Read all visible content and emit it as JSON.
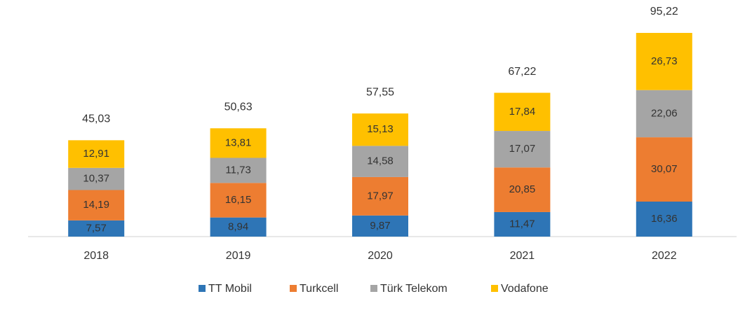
{
  "chart_data": {
    "type": "stacked_bar",
    "categories": [
      "2018",
      "2019",
      "2020",
      "2021",
      "2022"
    ],
    "series": [
      {
        "name": "TT Mobil",
        "color": "#2e75b6",
        "values": [
          7.57,
          8.94,
          9.87,
          11.47,
          16.36
        ],
        "value_labels": [
          "7,57",
          "8,94",
          "9,87",
          "11,47",
          "16,36"
        ]
      },
      {
        "name": "Turkcell",
        "color": "#ed7d31",
        "values": [
          14.19,
          16.15,
          17.97,
          20.85,
          30.07
        ],
        "value_labels": [
          "14,19",
          "16,15",
          "17,97",
          "20,85",
          "30,07"
        ]
      },
      {
        "name": "Türk Telekom",
        "color": "#a5a5a5",
        "values": [
          10.37,
          11.73,
          14.58,
          17.07,
          22.06
        ],
        "value_labels": [
          "10,37",
          "11,73",
          "14,58",
          "17,07",
          "22,06"
        ]
      },
      {
        "name": "Vodafone",
        "color": "#ffc000",
        "values": [
          12.91,
          13.81,
          15.13,
          17.84,
          26.73
        ],
        "value_labels": [
          "12,91",
          "13,81",
          "15,13",
          "17,84",
          "26,73"
        ]
      }
    ],
    "totals": {
      "values": [
        45.03,
        50.63,
        57.55,
        67.22,
        95.22
      ],
      "value_labels": [
        "45,03",
        "50,63",
        "57,55",
        "67,22",
        "95,22"
      ]
    },
    "legend": "bottom"
  }
}
